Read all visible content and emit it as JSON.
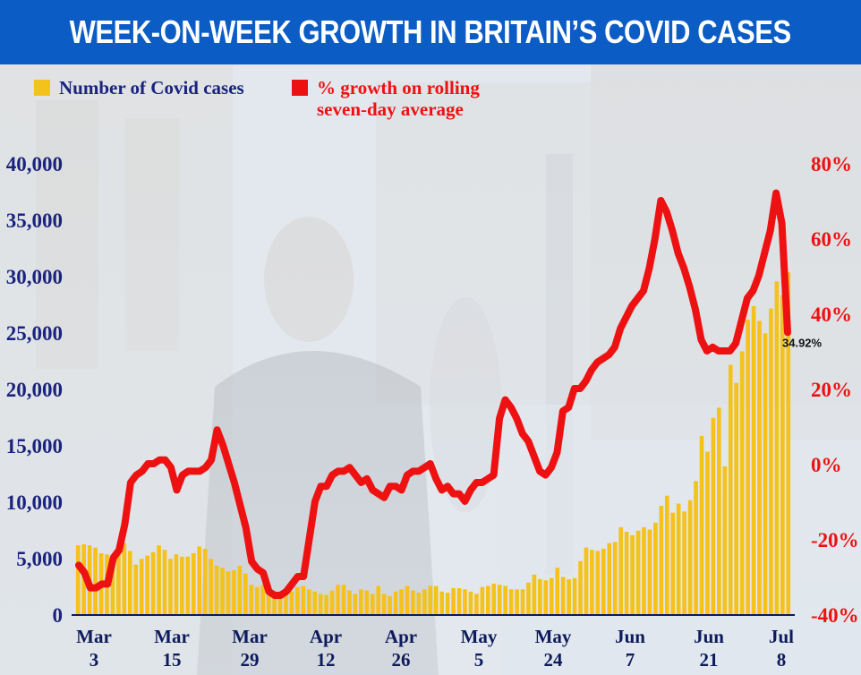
{
  "title": "WEEK-ON-WEEK GROWTH IN BRITAIN’S COVID CASES",
  "legend": {
    "cases_label": "Number of Covid cases",
    "growth_label": "% growth on rolling\nseven-day average"
  },
  "colors": {
    "banner": "#0b5cc4",
    "bars": "#f5c21c",
    "line": "#ee1111",
    "left_axis_text": "#1a237e",
    "right_axis_text": "#ee1111",
    "bottom_axis_text": "#0d1a5c"
  },
  "chart_data": {
    "type": "bar+line",
    "x_labels": [
      [
        "Mar",
        "3"
      ],
      [
        "Mar",
        "15"
      ],
      [
        "Mar",
        "29"
      ],
      [
        "Apr",
        "12"
      ],
      [
        "Apr",
        "26"
      ],
      [
        "May",
        "5"
      ],
      [
        "May",
        "24"
      ],
      [
        "Jun",
        "7"
      ],
      [
        "Jun",
        "21"
      ],
      [
        "Jul",
        "8"
      ]
    ],
    "left_axis": {
      "ticks": [
        "0",
        "5,000",
        "10,000",
        "15,000",
        "20,000",
        "25,000",
        "30,000",
        "35,000",
        "40,000"
      ],
      "range": [
        0,
        40000
      ]
    },
    "right_axis": {
      "ticks": [
        "-40%",
        "-20%",
        "0%",
        "20%",
        "40%",
        "60%",
        "80%"
      ],
      "range": [
        -40,
        80
      ]
    },
    "series": [
      {
        "name": "Number of Covid cases",
        "kind": "bar",
        "values": [
          6100,
          6200,
          6100,
          5900,
          5400,
          5300,
          4700,
          5400,
          6300,
          5600,
          4400,
          4900,
          5200,
          5500,
          6100,
          5700,
          4900,
          5300,
          5100,
          5100,
          5400,
          6000,
          5800,
          4900,
          4300,
          4100,
          3800,
          3900,
          4300,
          3600,
          2600,
          2400,
          2600,
          2200,
          2000,
          1900,
          1700,
          2000,
          2400,
          2500,
          2200,
          2000,
          1800,
          1700,
          2100,
          2600,
          2600,
          2100,
          1800,
          2200,
          2100,
          1800,
          2500,
          1800,
          1600,
          2000,
          2200,
          2500,
          2100,
          1900,
          2200,
          2500,
          2500,
          2000,
          1900,
          2300,
          2300,
          2200,
          2000,
          1800,
          2400,
          2500,
          2700,
          2600,
          2500,
          2200,
          2200,
          2200,
          2800,
          3500,
          3100,
          3000,
          3200,
          4100,
          3300,
          3100,
          3200,
          4700,
          5900,
          5700,
          5600,
          5800,
          6300,
          6400,
          7700,
          7300,
          7000,
          7400,
          7700,
          7500,
          8100,
          9600,
          10500,
          9000,
          9800,
          9100,
          10100,
          11800,
          15800,
          14400,
          17400,
          18300,
          13100,
          22100,
          20500,
          23300,
          26100,
          27300,
          26000,
          24900,
          27100,
          29500,
          28300,
          30300
        ]
      },
      {
        "name": "% growth on rolling seven-day average",
        "kind": "line",
        "values": [
          -27,
          -29,
          -33,
          -33,
          -32,
          -32,
          -25,
          -23,
          -16,
          -5,
          -3,
          -2,
          0,
          0,
          1,
          1,
          -1,
          -7,
          -3,
          -2,
          -2,
          -2,
          -1,
          1,
          9,
          5,
          0,
          -5,
          -11,
          -17,
          -26,
          -28,
          -29,
          -34,
          -35,
          -35,
          -34,
          -32,
          -30,
          -30,
          -20,
          -10,
          -6,
          -6,
          -3,
          -2,
          -2,
          -1,
          -3,
          -5,
          -4,
          -7,
          -8,
          -9,
          -6,
          -6,
          -7,
          -3,
          -2,
          -2,
          -1,
          0,
          -4,
          -7,
          -6,
          -8,
          -8,
          -10,
          -7,
          -5,
          -5,
          -4,
          -3,
          12,
          17,
          15,
          12,
          8,
          6,
          2,
          -2,
          -3,
          -1,
          3,
          14,
          15,
          20,
          20,
          22,
          25,
          27,
          28,
          29,
          31,
          36,
          39,
          42,
          44,
          46,
          52,
          60,
          70,
          67,
          62,
          56,
          52,
          47,
          41,
          33,
          30,
          31,
          30,
          30,
          30,
          32,
          38,
          44,
          46,
          50,
          56,
          62,
          72,
          64,
          34.92
        ]
      }
    ],
    "annotation": "34.92%",
    "legend_position": "top-left",
    "grid": false
  }
}
